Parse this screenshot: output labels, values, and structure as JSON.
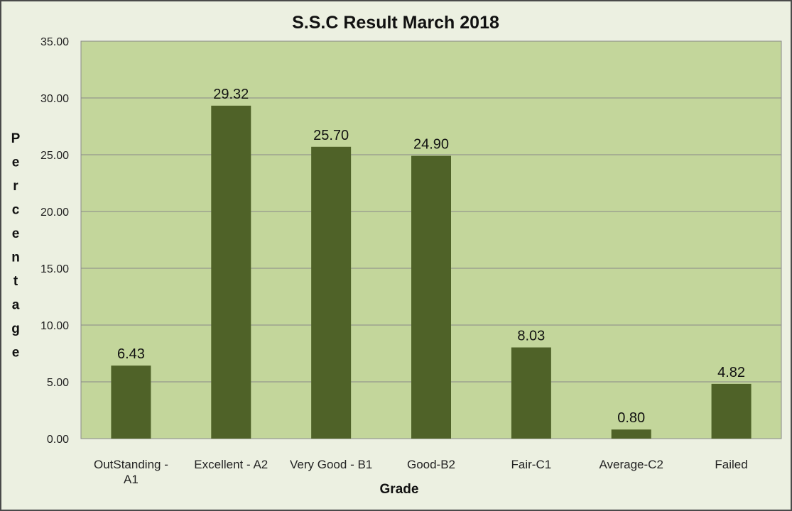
{
  "chart_data": {
    "type": "bar",
    "title": "S.S.C Result March 2018",
    "xlabel": "Grade",
    "ylabel": "Percentage",
    "categories": [
      [
        "OutStanding -",
        "A1"
      ],
      [
        "Excellent - A2"
      ],
      [
        "Very Good - B1"
      ],
      [
        "Good-B2"
      ],
      [
        "Fair-C1"
      ],
      [
        "Average-C2"
      ],
      [
        "Failed"
      ]
    ],
    "values": [
      6.43,
      29.32,
      25.7,
      24.9,
      8.03,
      0.8,
      4.82
    ],
    "data_labels": [
      "6.43",
      "29.32",
      "25.70",
      "24.90",
      "8.03",
      "0.80",
      "4.82"
    ],
    "ylim": [
      0,
      35
    ],
    "yticks": [
      "0.00",
      "5.00",
      "10.00",
      "15.00",
      "20.00",
      "25.00",
      "30.00",
      "35.00"
    ],
    "grid": true,
    "legend": "none",
    "colors": {
      "bar": "#4f6228",
      "plot_background": "#c3d69b",
      "chart_background": "#ecf0e1",
      "gridline": "#888888"
    }
  }
}
